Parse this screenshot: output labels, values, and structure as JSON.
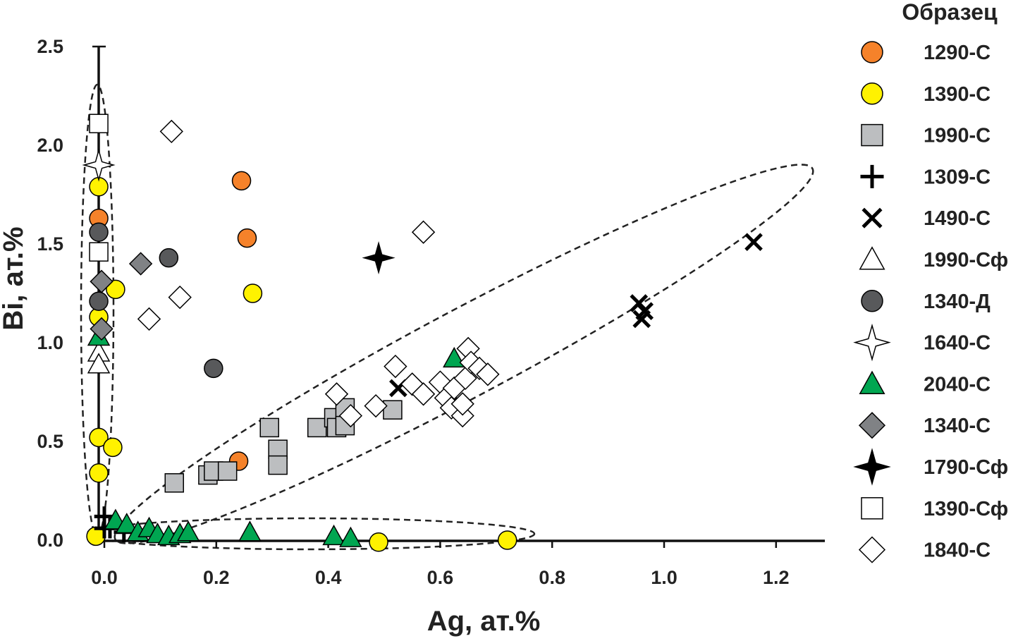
{
  "chart_data": {
    "type": "scatter",
    "title": "",
    "xlabel": "Ag, ат.%",
    "ylabel": "Bi, ат.%",
    "xlim": [
      -0.02,
      1.3
    ],
    "ylim": [
      -0.02,
      2.5
    ],
    "xticks": [
      "0.0",
      "0.2",
      "0.4",
      "0.6",
      "0.8",
      "1.0",
      "1.2"
    ],
    "yticks": [
      "0.0",
      "0.5",
      "1.0",
      "1.5",
      "2.0",
      "2.5"
    ],
    "legend_title": "Образец",
    "legend_position": "right",
    "series": [
      {
        "name": "1290-С",
        "marker": "circle",
        "fill": "#F5822A",
        "points": [
          [
            -0.01,
            1.63
          ],
          [
            0.245,
            1.82
          ],
          [
            0.255,
            1.53
          ],
          [
            0.24,
            0.4
          ]
        ]
      },
      {
        "name": "1390-С",
        "marker": "circle",
        "fill": "#FFF200",
        "points": [
          [
            -0.01,
            1.79
          ],
          [
            0.02,
            1.27
          ],
          [
            -0.01,
            1.13
          ],
          [
            -0.01,
            0.52
          ],
          [
            0.015,
            0.47
          ],
          [
            -0.01,
            0.34
          ],
          [
            0.265,
            1.25
          ],
          [
            -0.015,
            0.02
          ],
          [
            0.49,
            -0.01
          ],
          [
            0.72,
            0.0
          ]
        ]
      },
      {
        "name": "1990-С",
        "marker": "square",
        "fill": "#BCBEC0",
        "points": [
          [
            0.125,
            0.29
          ],
          [
            0.185,
            0.33
          ],
          [
            0.195,
            0.35
          ],
          [
            0.22,
            0.35
          ],
          [
            0.295,
            0.57
          ],
          [
            0.31,
            0.46
          ],
          [
            0.31,
            0.38
          ],
          [
            0.38,
            0.57
          ],
          [
            0.41,
            0.62
          ],
          [
            0.415,
            0.57
          ],
          [
            0.43,
            0.67
          ],
          [
            0.43,
            0.58
          ],
          [
            0.515,
            0.66
          ]
        ]
      },
      {
        "name": "1309-С",
        "marker": "plus",
        "fill": "#000000",
        "points": [
          [
            0.0,
            0.12
          ],
          [
            0.0,
            0.06
          ],
          [
            0.01,
            0.06
          ],
          [
            0.035,
            0.04
          ]
        ]
      },
      {
        "name": "1490-С",
        "marker": "cross",
        "fill": "#000000",
        "points": [
          [
            0.525,
            0.77
          ],
          [
            0.955,
            1.2
          ],
          [
            0.96,
            1.12
          ],
          [
            0.965,
            1.16
          ],
          [
            1.16,
            1.51
          ]
        ]
      },
      {
        "name": "1990-Сф",
        "marker": "triangle",
        "fill": "#ffffff",
        "points": [
          [
            -0.01,
            0.95
          ],
          [
            -0.01,
            0.89
          ]
        ]
      },
      {
        "name": "1340-Д",
        "marker": "circle",
        "fill": "#58595B",
        "points": [
          [
            -0.01,
            1.56
          ],
          [
            -0.01,
            1.21
          ],
          [
            0.115,
            1.43
          ],
          [
            0.195,
            0.87
          ]
        ]
      },
      {
        "name": "1640-С",
        "marker": "star4",
        "fill": "#ffffff",
        "points": [
          [
            -0.01,
            1.9
          ]
        ]
      },
      {
        "name": "2040-С",
        "marker": "triangle",
        "fill": "#00A651",
        "points": [
          [
            -0.01,
            1.03
          ],
          [
            0.02,
            0.1
          ],
          [
            0.04,
            0.08
          ],
          [
            0.06,
            0.04
          ],
          [
            0.08,
            0.06
          ],
          [
            0.095,
            0.03
          ],
          [
            0.115,
            0.02
          ],
          [
            0.135,
            0.03
          ],
          [
            0.15,
            0.04
          ],
          [
            0.26,
            0.04
          ],
          [
            0.41,
            0.02
          ],
          [
            0.44,
            0.01
          ],
          [
            0.625,
            0.92
          ]
        ]
      },
      {
        "name": "1340-С",
        "marker": "diamond",
        "fill": "#808285",
        "points": [
          [
            -0.005,
            1.31
          ],
          [
            -0.005,
            1.07
          ],
          [
            0.065,
            1.4
          ]
        ]
      },
      {
        "name": "1790-Сф",
        "marker": "star4",
        "fill": "#000000",
        "points": [
          [
            0.49,
            1.43
          ]
        ]
      },
      {
        "name": "1390-Сф",
        "marker": "square",
        "fill": "#ffffff",
        "points": [
          [
            -0.01,
            2.11
          ],
          [
            -0.01,
            1.46
          ]
        ]
      },
      {
        "name": "1840-С",
        "marker": "diamond",
        "fill": "#ffffff",
        "points": [
          [
            0.12,
            2.07
          ],
          [
            0.08,
            1.12
          ],
          [
            0.135,
            1.23
          ],
          [
            0.57,
            1.56
          ],
          [
            0.415,
            0.74
          ],
          [
            0.44,
            0.63
          ],
          [
            0.485,
            0.68
          ],
          [
            0.52,
            0.88
          ],
          [
            0.55,
            0.79
          ],
          [
            0.57,
            0.74
          ],
          [
            0.6,
            0.8
          ],
          [
            0.61,
            0.72
          ],
          [
            0.62,
            0.67
          ],
          [
            0.625,
            0.77
          ],
          [
            0.64,
            0.63
          ],
          [
            0.64,
            0.69
          ],
          [
            0.645,
            0.82
          ],
          [
            0.65,
            0.97
          ],
          [
            0.655,
            0.9
          ],
          [
            0.67,
            0.87
          ],
          [
            0.685,
            0.84
          ]
        ]
      }
    ]
  }
}
